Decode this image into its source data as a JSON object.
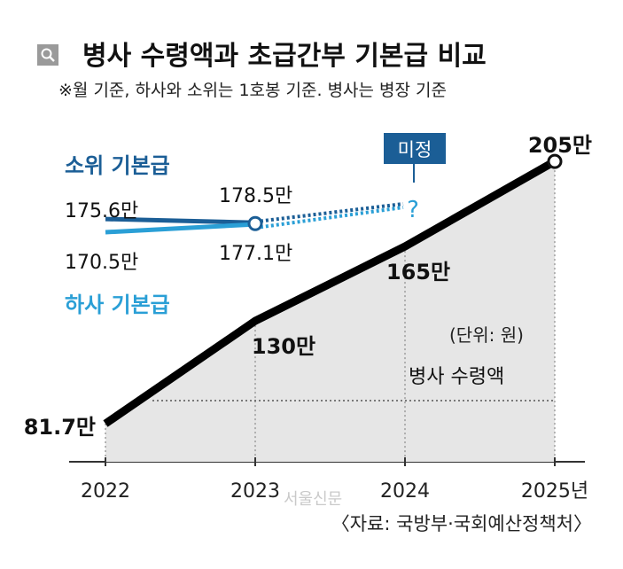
{
  "header": {
    "title": "병사 수령액과 초급간부 기본급 비교",
    "note": "※월 기준, 하사와 소위는 1호봉 기준. 병사는 병장 기준",
    "icon": "search-icon"
  },
  "chart_data": {
    "type": "line",
    "title": "병사 수령액과 초급간부 기본급 비교",
    "x": [
      "2022",
      "2023",
      "2024",
      "2025년"
    ],
    "unit_label": "(단위: 원)",
    "series": [
      {
        "name": "병사 수령액",
        "values": [
          81.7,
          130,
          165,
          205
        ],
        "labels": [
          "81.7만",
          "130만",
          "165만",
          "205만"
        ],
        "color": "#000000"
      },
      {
        "name": "소위 기본급",
        "values": [
          175.6,
          178.5,
          null,
          null
        ],
        "labels": [
          "175.6만",
          "178.5만"
        ],
        "color": "#1b5e96"
      },
      {
        "name": "하사 기본급",
        "values": [
          170.5,
          177.1,
          null,
          null
        ],
        "labels": [
          "170.5만",
          "177.1만"
        ],
        "color": "#2a9fd6"
      }
    ],
    "annotation_undecided": "미정",
    "annotation_question": "?",
    "source": "〈자료: 국방부·국회예산정책처〉",
    "watermark": "서울신문"
  }
}
